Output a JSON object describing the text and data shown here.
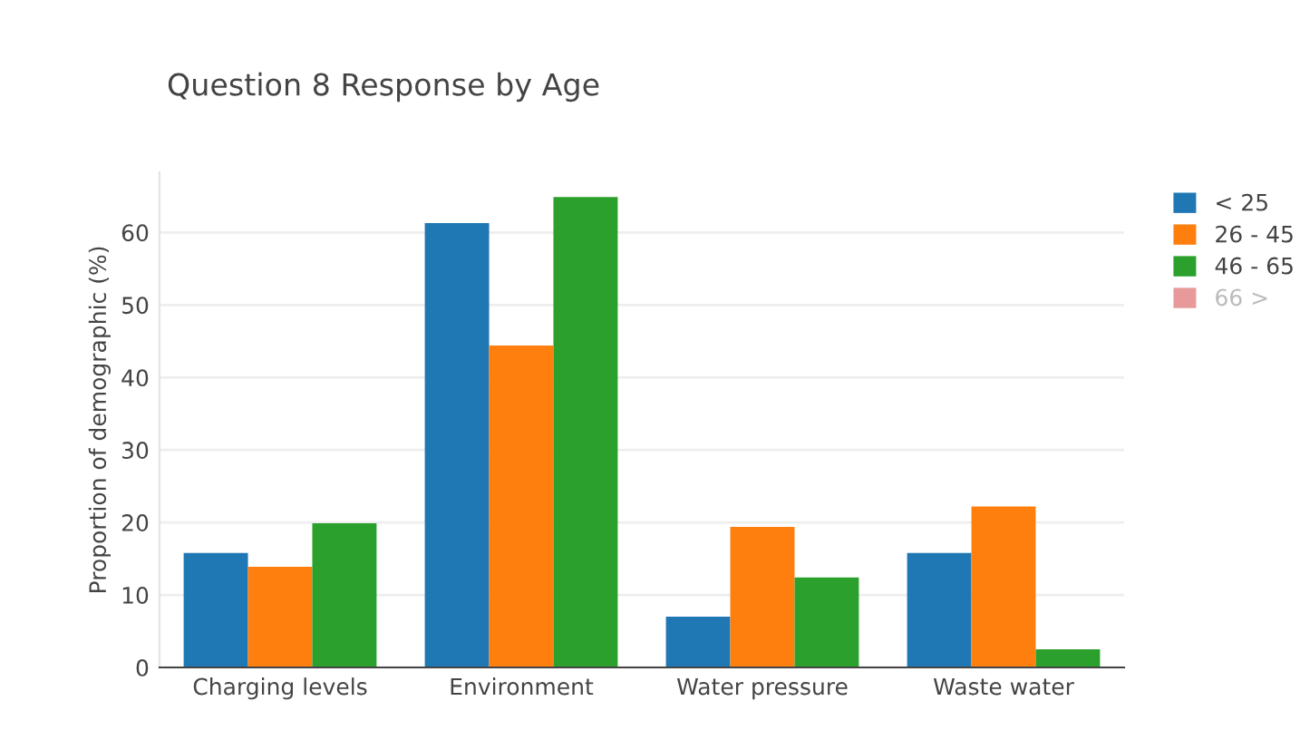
{
  "chart_data": {
    "type": "bar",
    "title": "Question 8 Response by Age",
    "ylabel": "Proportion of demographic (%)",
    "categories": [
      "Charging levels",
      "Environment",
      "Water pressure",
      "Waste water"
    ],
    "series": [
      {
        "name": "< 25",
        "color": "#1f77b4",
        "values": [
          15.8,
          61.3,
          7.0,
          15.8
        ]
      },
      {
        "name": "26 - 45",
        "color": "#ff7f0e",
        "values": [
          13.9,
          44.4,
          19.4,
          22.2
        ]
      },
      {
        "name": "46 - 65",
        "color": "#2ca02c",
        "values": [
          19.9,
          64.9,
          12.4,
          2.5
        ]
      },
      {
        "name": "66 >",
        "color": "#e89a9a",
        "values": [
          null,
          null,
          null,
          null
        ]
      }
    ],
    "ylim": [
      0,
      68.3
    ],
    "yticks": [
      0,
      10,
      20,
      30,
      40,
      50,
      60
    ],
    "grid": "y",
    "legend": "top right"
  }
}
